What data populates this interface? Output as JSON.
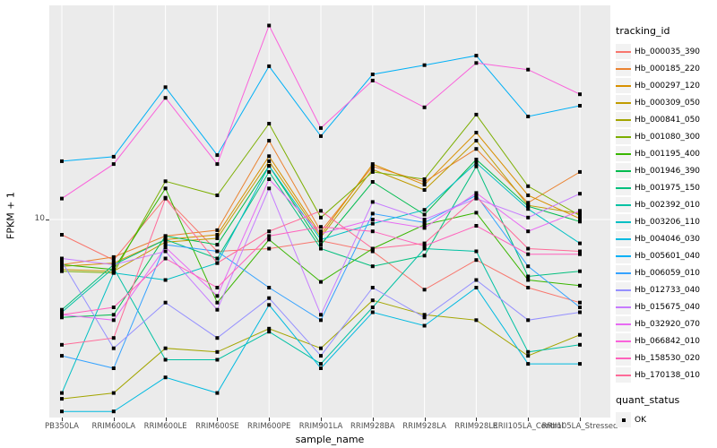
{
  "chart_data": {
    "type": "line",
    "title": "",
    "xlabel": "sample_name",
    "ylabel": "FPKM + 1",
    "y_scale": "log10",
    "y_ticks": [
      10
    ],
    "y_tick_labels": [
      "10"
    ],
    "ylim": [
      1.43,
      73.4
    ],
    "grid": "white major gridlines on gray panel",
    "legend_position": "right",
    "legend_title": "tracking_id",
    "quant_legend": {
      "title": "quant_status",
      "label": "OK",
      "marker": "black-square-icon"
    },
    "panel_bg": "#EBEBEB",
    "grid_color": "#FFFFFF",
    "marker_color": "#000000",
    "tick_label_color": "#4D4D4D",
    "categories": [
      "PB350LA",
      "RRIM600LA",
      "RRIM600LE",
      "RRIM600SE",
      "RRIM600PE",
      "RRIM901LA",
      "RRIM928BA",
      "RRIM928LA",
      "RRIM928LE",
      "RRII105LA_Control",
      "RRII105LA_Stressed"
    ],
    "series": [
      {
        "name": "Hb_000035_390",
        "color": "#F8766D",
        "values": [
          8.6,
          6.7,
          12.4,
          7.3,
          7.5,
          8.1,
          7.3,
          5.0,
          6.7,
          5.1,
          4.4
        ]
      },
      {
        "name": "Hb_000185_220",
        "color": "#EA8331",
        "values": [
          6.4,
          6.9,
          8.5,
          9.0,
          21.8,
          8.9,
          16.9,
          14.5,
          20.1,
          11.8,
          16.0
        ]
      },
      {
        "name": "Hb_000297_120",
        "color": "#D89000",
        "values": [
          6.3,
          6.5,
          8.2,
          8.6,
          18.7,
          8.6,
          17.3,
          14.1,
          23.6,
          12.7,
          10.1
        ]
      },
      {
        "name": "Hb_000309_050",
        "color": "#C09B00",
        "values": [
          6.1,
          6.0,
          8.0,
          8.3,
          17.8,
          8.4,
          16.4,
          13.4,
          21.8,
          11.5,
          10.6
        ]
      },
      {
        "name": "Hb_000841_050",
        "color": "#A3A500",
        "values": [
          1.7,
          1.8,
          2.8,
          2.7,
          3.4,
          2.8,
          4.5,
          3.9,
          3.7,
          2.6,
          3.2
        ]
      },
      {
        "name": "Hb_001080_300",
        "color": "#7CAE00",
        "values": [
          6.0,
          5.9,
          14.6,
          12.7,
          25.8,
          10.2,
          16.0,
          14.9,
          28.2,
          13.9,
          10.4
        ]
      },
      {
        "name": "Hb_001195_400",
        "color": "#39B600",
        "values": [
          6.4,
          6.1,
          13.6,
          4.4,
          8.2,
          5.4,
          7.5,
          9.5,
          10.7,
          5.5,
          5.2
        ]
      },
      {
        "name": "Hb_001946_390",
        "color": "#00BB4E",
        "values": [
          3.8,
          3.9,
          8.5,
          7.8,
          17.0,
          7.8,
          14.5,
          10.5,
          18.1,
          11.4,
          9.8
        ]
      },
      {
        "name": "Hb_001975_150",
        "color": "#00BF7D",
        "values": [
          4.1,
          6.4,
          8.2,
          6.8,
          16.0,
          7.5,
          6.3,
          7.0,
          16.9,
          5.7,
          6.0
        ]
      },
      {
        "name": "Hb_002392_010",
        "color": "#00C1A3",
        "values": [
          4.0,
          6.2,
          2.5,
          2.5,
          3.3,
          2.4,
          4.2,
          7.5,
          7.3,
          2.7,
          2.9
        ]
      },
      {
        "name": "Hb_003206_110",
        "color": "#00BFC4",
        "values": [
          1.8,
          5.9,
          5.5,
          6.5,
          17.0,
          8.2,
          9.6,
          11.0,
          17.5,
          11.1,
          7.9
        ]
      },
      {
        "name": "Hb_004046_030",
        "color": "#00BAE0",
        "values": [
          1.5,
          1.5,
          2.1,
          1.8,
          4.3,
          2.3,
          4.0,
          3.5,
          5.1,
          2.4,
          2.4
        ]
      },
      {
        "name": "Hb_005601_040",
        "color": "#00B0F6",
        "values": [
          17.8,
          18.6,
          37.0,
          18.9,
          45.5,
          22.8,
          42.0,
          46.0,
          50.5,
          27.7,
          30.8
        ]
      },
      {
        "name": "Hb_006059_010",
        "color": "#35A2FF",
        "values": [
          2.6,
          2.3,
          7.8,
          7.3,
          5.1,
          3.7,
          10.6,
          9.7,
          12.7,
          6.3,
          4.2
        ]
      },
      {
        "name": "Hb_012733_040",
        "color": "#9590FF",
        "values": [
          6.6,
          2.8,
          4.4,
          3.1,
          4.6,
          2.6,
          5.1,
          3.8,
          5.5,
          3.7,
          4.0
        ]
      },
      {
        "name": "Hb_015675_040",
        "color": "#C77CFF",
        "values": [
          6.8,
          6.4,
          7.3,
          4.1,
          13.6,
          3.9,
          11.9,
          10.0,
          12.3,
          10.2,
          12.9
        ]
      },
      {
        "name": "Hb_032920_070",
        "color": "#E76BF3",
        "values": [
          3.9,
          3.7,
          7.6,
          4.7,
          14.9,
          8.7,
          10.0,
          9.2,
          13.0,
          8.9,
          10.9
        ]
      },
      {
        "name": "Hb_066842_010",
        "color": "#FA62DB",
        "values": [
          12.3,
          17.3,
          33.3,
          17.3,
          68.0,
          24.7,
          39.5,
          30.3,
          47.0,
          44.0,
          34.5
        ]
      },
      {
        "name": "Hb_158530_020",
        "color": "#FF62BC",
        "values": [
          3.9,
          4.2,
          6.8,
          5.1,
          8.5,
          9.3,
          8.9,
          7.7,
          9.4,
          7.1,
          7.1
        ]
      },
      {
        "name": "Hb_170138_010",
        "color": "#FF6A98",
        "values": [
          2.9,
          3.1,
          12.3,
          6.5,
          8.9,
          10.9,
          7.5,
          7.9,
          12.5,
          7.5,
          7.3
        ]
      }
    ]
  }
}
